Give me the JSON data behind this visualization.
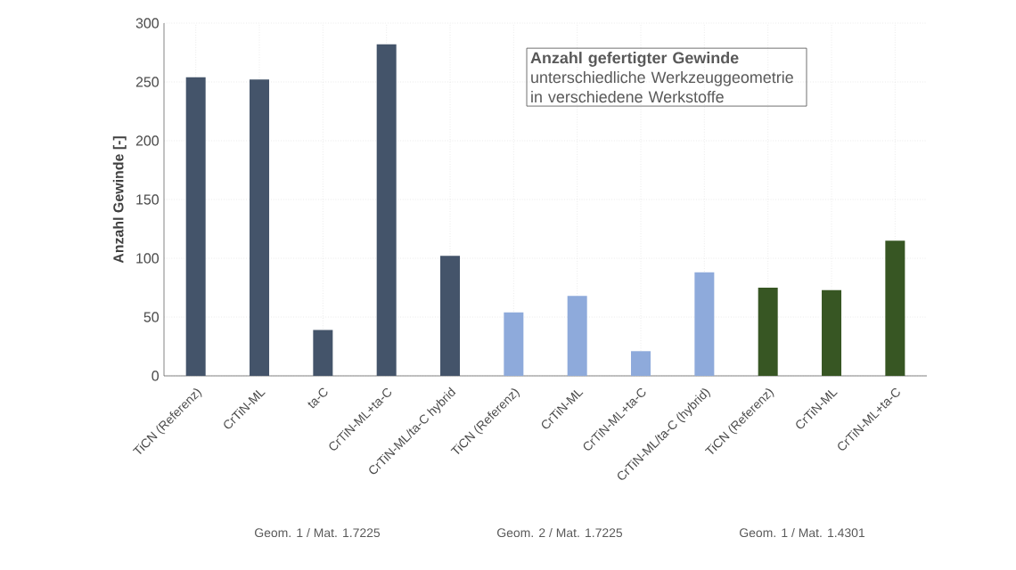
{
  "chart_data": {
    "type": "bar",
    "title": "Anzahl gefertigter Gewinde",
    "subtitle": "unterschiedliche Werkzeuggeometrie in verschiedene Werkstoffe",
    "ylabel": "Anzahl Gewinde [-]",
    "categories": [
      "TiCN (Referenz)",
      "CrTiN-ML",
      "ta-C",
      "CrTiN-ML+ta-C",
      "CrTiN-ML/ta-C hybrid",
      "TiCN (Referenz)",
      "CrTiN-ML",
      "CrTiN-ML+ta-C",
      "CrTiN-ML/ta-C (hybrid)",
      "TiCN (Referenz)",
      "CrTiN-ML",
      "CrTiN-ML+ta-C"
    ],
    "values": [
      254,
      252,
      39,
      282,
      102,
      54,
      68,
      21,
      88,
      75,
      73,
      115
    ],
    "colors": [
      "#44546a",
      "#44546a",
      "#44546a",
      "#44546a",
      "#44546a",
      "#8eaadb",
      "#8eaadb",
      "#8eaadb",
      "#8eaadb",
      "#375623",
      "#375623",
      "#375623"
    ],
    "ylim": [
      0,
      300
    ],
    "yticks": [
      0,
      50,
      100,
      150,
      200,
      250,
      300
    ],
    "grid": true,
    "annotations": [
      "Geom. 1 / Mat. 1.7225",
      "Geom. 2 / Mat. 1.7225",
      "Geom. 1 / Mat. 1.4301"
    ]
  }
}
